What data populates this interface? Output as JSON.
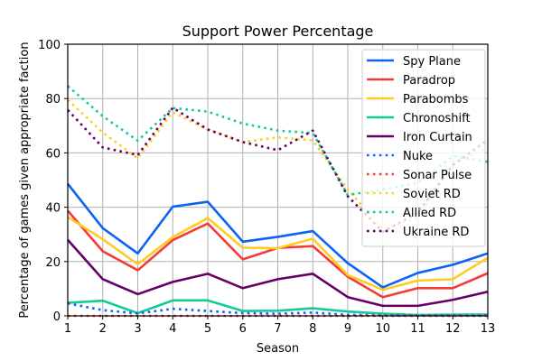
{
  "chart_data": {
    "type": "line",
    "title": "Support Power Percentage",
    "xlabel": "Season",
    "ylabel": "Percentage of games given appropriate faction",
    "x": [
      1,
      2,
      3,
      4,
      5,
      6,
      7,
      8,
      9,
      10,
      11,
      12,
      13
    ],
    "xlim": [
      1,
      13
    ],
    "ylim": [
      0,
      100
    ],
    "xticks": [
      "1",
      "2",
      "3",
      "4",
      "5",
      "6",
      "7",
      "8",
      "9",
      "10",
      "11",
      "12",
      "13"
    ],
    "yticks": [
      0,
      20,
      40,
      60,
      80,
      100
    ],
    "ytick_labels": [
      "0",
      "20",
      "40",
      "60",
      "80",
      "100"
    ],
    "grid": true,
    "legend_position": "top-right",
    "series": [
      {
        "name": "Spy Plane",
        "color": "#0b62f6",
        "style": "solid",
        "values": [
          48.6,
          32.3,
          23.0,
          40.2,
          42.0,
          27.3,
          29.1,
          31.2,
          19.4,
          10.5,
          15.8,
          18.8,
          23.0
        ]
      },
      {
        "name": "Paradrop",
        "color": "#f53a3a",
        "style": "solid",
        "values": [
          38.7,
          23.8,
          16.8,
          27.9,
          34.0,
          20.8,
          25.0,
          25.7,
          14.4,
          6.9,
          10.2,
          10.2,
          15.7
        ]
      },
      {
        "name": "Parabombs",
        "color": "#ffcc22",
        "style": "solid",
        "values": [
          36.4,
          28.2,
          19.0,
          29.0,
          36.0,
          25.1,
          24.9,
          28.4,
          15.0,
          9.6,
          13.0,
          13.5,
          21.4
        ]
      },
      {
        "name": "Chronoshift",
        "color": "#11cc99",
        "style": "solid",
        "values": [
          4.8,
          5.6,
          1.0,
          5.7,
          5.7,
          1.8,
          1.9,
          2.8,
          1.6,
          0.8,
          0.3,
          0.5,
          0.5
        ]
      },
      {
        "name": "Iron Curtain",
        "color": "#660066",
        "style": "solid",
        "values": [
          28.0,
          13.5,
          8.0,
          12.5,
          15.5,
          10.2,
          13.5,
          15.5,
          6.9,
          3.7,
          3.7,
          5.9,
          8.9
        ]
      },
      {
        "name": "Nuke",
        "color": "#0b62f6",
        "style": "dotted",
        "values": [
          4.6,
          2.1,
          0.9,
          2.6,
          1.8,
          1.0,
          0.8,
          1.2,
          0.4,
          0.2,
          0.2,
          0.2,
          0.2
        ]
      },
      {
        "name": "Sonar Pulse",
        "color": "#f53a3a",
        "style": "dotted",
        "values": [
          0,
          0,
          0,
          0,
          0,
          0,
          0,
          0,
          0,
          0,
          0,
          0,
          0
        ]
      },
      {
        "name": "Soviet RD",
        "color": "#ffcc22",
        "style": "dotted",
        "values": [
          79.5,
          67.5,
          58.0,
          75.0,
          68.6,
          64.0,
          65.7,
          64.6,
          46.5,
          32.0,
          36.0,
          56.0,
          62.0
        ]
      },
      {
        "name": "Allied RD",
        "color": "#11cc99",
        "style": "dotted",
        "values": [
          84.6,
          73.5,
          64.5,
          76.5,
          75.2,
          70.8,
          68.2,
          67.3,
          44.5,
          46.5,
          49.0,
          58.8,
          56.7
        ]
      },
      {
        "name": "Ukraine RD",
        "color": "#660066",
        "style": "dotted",
        "values": [
          75.8,
          62.0,
          59.2,
          76.6,
          68.6,
          64.0,
          61.0,
          68.2,
          44.0,
          31.0,
          38.0,
          55.5,
          64.8
        ]
      }
    ]
  }
}
